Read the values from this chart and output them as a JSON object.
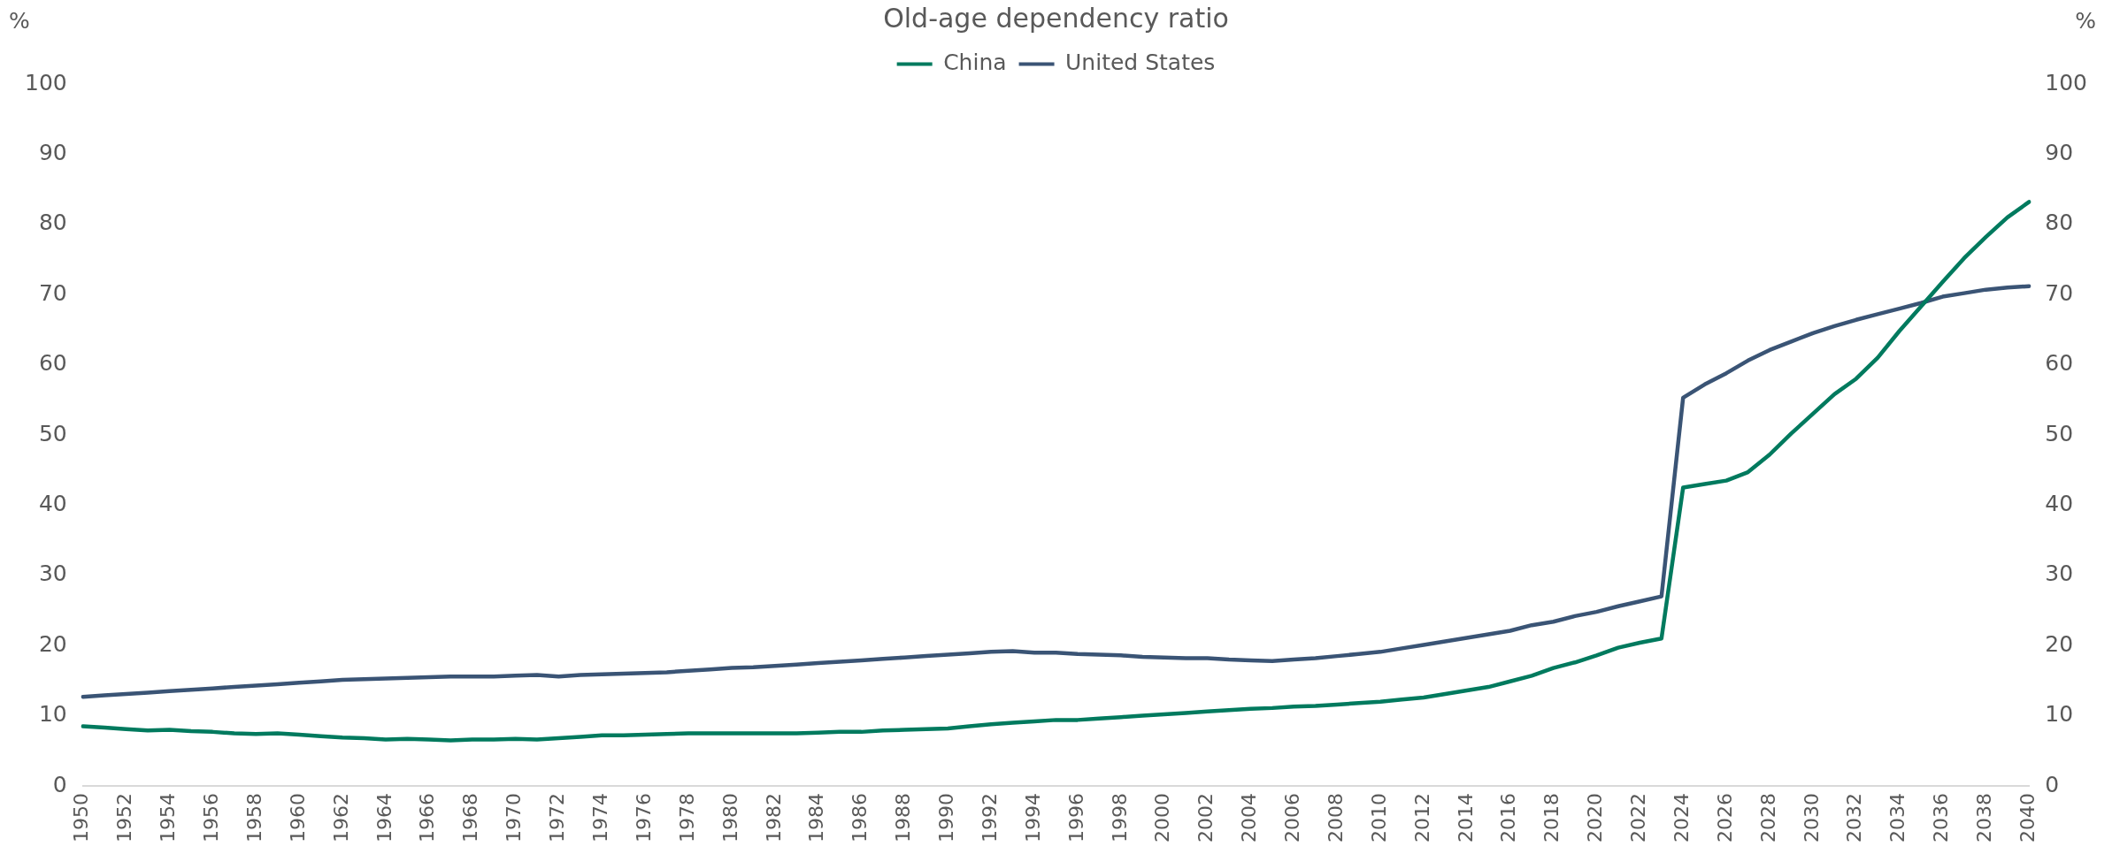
{
  "chart_data": {
    "type": "line",
    "title": "Old-age dependency ratio",
    "ylabel": "%",
    "y2label": "%",
    "categories": [
      "1950",
      null,
      "1952",
      null,
      "1954",
      null,
      "1956",
      null,
      "1958",
      null,
      "1960",
      null,
      "1962",
      null,
      "1964",
      null,
      "1966",
      null,
      "1968",
      null,
      "1970",
      null,
      "1972",
      null,
      "1974",
      null,
      "1976",
      null,
      "1978",
      null,
      "1980",
      null,
      "1982",
      null,
      "1984",
      null,
      "1986",
      null,
      "1988",
      null,
      "1990",
      null,
      "1992",
      null,
      "1994",
      null,
      "1996",
      null,
      "1998",
      null,
      "2000",
      null,
      "2002",
      null,
      "2004",
      null,
      "2006",
      null,
      "2008",
      null,
      "2010",
      null,
      "2012",
      null,
      "2014",
      null,
      "2016",
      null,
      "2018",
      null,
      "2020",
      null,
      "2022",
      null,
      "2024",
      null,
      "2026",
      null,
      "2028",
      null,
      "2030",
      null,
      "2032",
      null,
      "2034",
      null,
      "2036",
      null,
      "2038",
      null,
      "2040"
    ],
    "series": [
      {
        "name": "China",
        "color": "#007a5e",
        "values": [
          8.5,
          8.3,
          8.1,
          7.9,
          8.0,
          7.8,
          7.7,
          7.5,
          7.4,
          7.5,
          7.3,
          7.1,
          6.9,
          6.8,
          6.6,
          6.7,
          6.6,
          6.5,
          6.6,
          6.6,
          6.7,
          6.6,
          6.8,
          7.0,
          7.2,
          7.2,
          7.3,
          7.4,
          7.5,
          7.5,
          7.5,
          7.5,
          7.5,
          7.5,
          7.6,
          7.7,
          7.7,
          7.9,
          8.0,
          8.1,
          8.2,
          8.5,
          8.8,
          9.0,
          9.2,
          9.4,
          9.4,
          9.6,
          9.8,
          10.0,
          10.2,
          10.4,
          10.6,
          10.8,
          11.0,
          11.1,
          11.3,
          11.4,
          11.6,
          11.8,
          12.0,
          12.3,
          12.6,
          13.1,
          13.6,
          14.1,
          14.9,
          15.7,
          16.8,
          17.6,
          18.6,
          19.7,
          20.4,
          21.0,
          42.5,
          43.0,
          43.5,
          44.7,
          47.2,
          50.2,
          53.0,
          55.8,
          58.0,
          61.0,
          64.8,
          68.3,
          71.8,
          75.2,
          78.2,
          81.0,
          83.2
        ]
      },
      {
        "name": "United States",
        "color": "#3a5475",
        "values": [
          12.7,
          12.9,
          13.1,
          13.3,
          13.5,
          13.7,
          13.9,
          14.1,
          14.3,
          14.5,
          14.7,
          14.9,
          15.1,
          15.2,
          15.3,
          15.4,
          15.5,
          15.6,
          15.6,
          15.6,
          15.7,
          15.8,
          15.6,
          15.8,
          15.9,
          16.0,
          16.1,
          16.2,
          16.4,
          16.6,
          16.8,
          16.9,
          17.1,
          17.3,
          17.5,
          17.7,
          17.9,
          18.1,
          18.3,
          18.5,
          18.7,
          18.9,
          19.1,
          19.2,
          19.0,
          19.0,
          18.8,
          18.7,
          18.6,
          18.4,
          18.3,
          18.2,
          18.2,
          18.0,
          17.9,
          17.8,
          18.0,
          18.2,
          18.5,
          18.8,
          19.1,
          19.6,
          20.1,
          20.6,
          21.1,
          21.6,
          22.1,
          22.9,
          23.4,
          24.2,
          24.8,
          25.6,
          26.3,
          27.0,
          55.3,
          57.2,
          58.8,
          60.6,
          62.1,
          63.3,
          64.5,
          65.5,
          66.4,
          67.2,
          68.0,
          68.8,
          69.7,
          70.2,
          70.7,
          71.0,
          71.2
        ]
      }
    ],
    "ylim": [
      0,
      100
    ],
    "yticks": [
      0,
      10,
      20,
      30,
      40,
      50,
      60,
      70,
      80,
      90,
      100
    ],
    "y2lim": [
      0,
      100
    ],
    "y2ticks": [
      0,
      10,
      20,
      30,
      40,
      50,
      60,
      70,
      80,
      90,
      100
    ],
    "grid": false,
    "legend": "top",
    "marker": "none",
    "line_style": "solid"
  }
}
